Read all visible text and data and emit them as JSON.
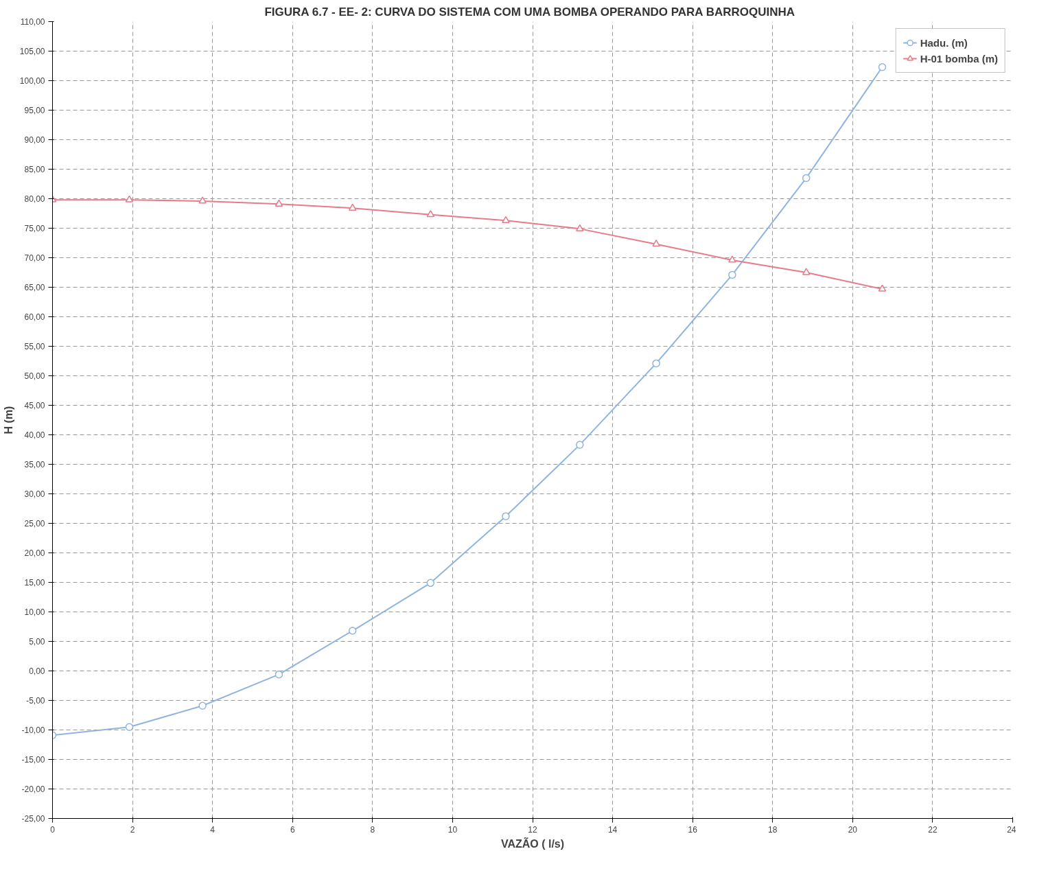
{
  "chart_data": {
    "type": "line",
    "title": "FIGURA 6.7  - EE- 2: CURVA DO SISTEMA COM UMA BOMBA OPERANDO PARA BARROQUINHA",
    "xlabel": "VAZÃO ( l/s)",
    "ylabel": "H (m)",
    "x": [
      0,
      1.92,
      3.75,
      5.66,
      7.5,
      9.45,
      11.33,
      13.18,
      15.09,
      16.99,
      18.84,
      20.74
    ],
    "series": [
      {
        "name": "Hadu. (m)",
        "color": "#8fb4e0",
        "marker": "circle",
        "values": [
          -10.9,
          -9.5,
          -5.9,
          -0.6,
          6.8,
          14.9,
          26.2,
          38.3,
          52.1,
          67.1,
          83.5,
          102.3
        ]
      },
      {
        "name": "H-01 bomba (m)",
        "color": "#e87a8a",
        "marker": "triangle",
        "values": [
          79.8,
          79.8,
          79.6,
          79.1,
          78.4,
          77.3,
          76.3,
          74.9,
          72.3,
          69.6,
          67.5,
          64.7
        ]
      }
    ],
    "xlim": [
      0,
      24
    ],
    "xticks": [
      0,
      2,
      4,
      6,
      8,
      10,
      12,
      14,
      16,
      18,
      20,
      22,
      24
    ],
    "ylim": [
      -25,
      110
    ],
    "yticks": [
      {
        "value": -25,
        "label": "-25,00"
      },
      {
        "value": -20,
        "label": "-20,00"
      },
      {
        "value": -15,
        "label": "-15,00"
      },
      {
        "value": -10,
        "label": "-10,00"
      },
      {
        "value": -5,
        "label": "-5,00"
      },
      {
        "value": 0,
        "label": "0,00"
      },
      {
        "value": 5,
        "label": "5,00"
      },
      {
        "value": 10,
        "label": "10,00"
      },
      {
        "value": 15,
        "label": "15,00"
      },
      {
        "value": 20,
        "label": "20,00"
      },
      {
        "value": 25,
        "label": "25,00"
      },
      {
        "value": 30,
        "label": "30,00"
      },
      {
        "value": 35,
        "label": "35,00"
      },
      {
        "value": 40,
        "label": "40,00"
      },
      {
        "value": 45,
        "label": "45,00"
      },
      {
        "value": 50,
        "label": "50,00"
      },
      {
        "value": 55,
        "label": "55,00"
      },
      {
        "value": 60,
        "label": "60,00"
      },
      {
        "value": 65,
        "label": "65,00"
      },
      {
        "value": 70,
        "label": "70,00"
      },
      {
        "value": 75,
        "label": "75,00"
      },
      {
        "value": 80,
        "label": "80,00"
      },
      {
        "value": 85,
        "label": "85,00"
      },
      {
        "value": 90,
        "label": "90,00"
      },
      {
        "value": 95,
        "label": "95,00"
      },
      {
        "value": 100,
        "label": "100,00"
      },
      {
        "value": 105,
        "label": "105,00"
      },
      {
        "value": 110,
        "label": "110,00"
      }
    ],
    "grid": true,
    "legend": "top right",
    "line_style": "solid"
  }
}
